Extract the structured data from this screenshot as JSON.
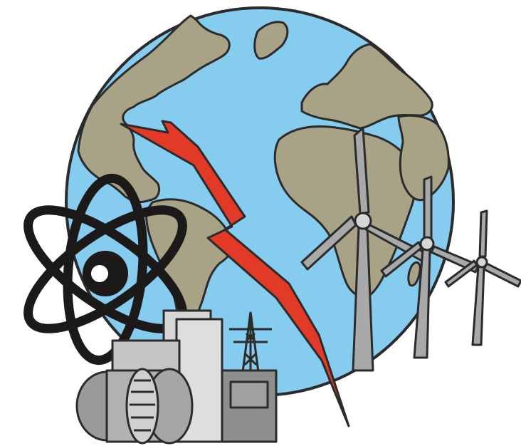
{
  "illustration": {
    "subject": "energy-and-globe-clipart",
    "elements": [
      "globe",
      "lightning-bolt",
      "atom-symbol",
      "power-plant",
      "transmission-tower",
      "wind-turbines"
    ],
    "colors": {
      "background": "#ffffff",
      "ocean": "#86ccef",
      "land": "#a8a386",
      "outline": "#2b2b2b",
      "lightning": "#e23a26",
      "atom": "#1c1a18",
      "plant_light": "#d6d6d6",
      "plant_mid": "#b9b9b9",
      "plant_dark": "#8f8f8f",
      "turbine": "#a9a9a9"
    }
  }
}
